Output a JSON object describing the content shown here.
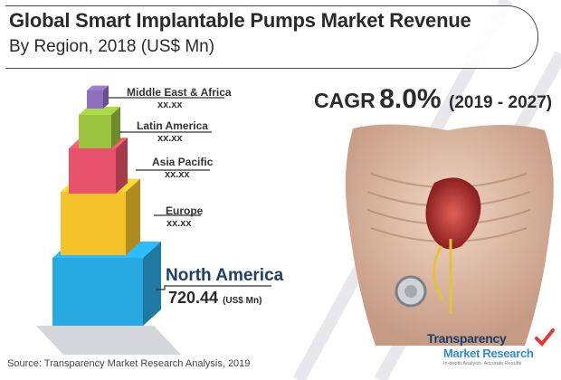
{
  "header": {
    "title_line1": "Global Smart Implantable Pumps Market Revenue",
    "title_line2": "By Region, 2018 (US$ Mn)"
  },
  "cagr": {
    "label": "CAGR",
    "value": "8.0%",
    "period": "(2019 - 2027)"
  },
  "chart_data": {
    "type": "bar",
    "title": "Global Smart Implantable Pumps Market Revenue By Region, 2018 (US$ Mn)",
    "categories": [
      "North America",
      "Europe",
      "Asia Pacific",
      "Latin America",
      "Middle East & Africa"
    ],
    "values": [
      720.44,
      null,
      null,
      null,
      null
    ],
    "value_labels": [
      "720.44",
      "xx.xx",
      "xx.xx",
      "xx.xx",
      "xx.xx"
    ],
    "unit_label": "(US$ Mn)",
    "colors": [
      "#29a9e1",
      "#f4c22b",
      "#e8526a",
      "#9ac33f",
      "#8d6fbe"
    ]
  },
  "source": "Source: Transparency Market Research Analysis, 2019",
  "logo": {
    "name_line1": "Transparency",
    "name_line2": "Market Research",
    "tagline": "In-depth Analysis. Accurate Results"
  }
}
